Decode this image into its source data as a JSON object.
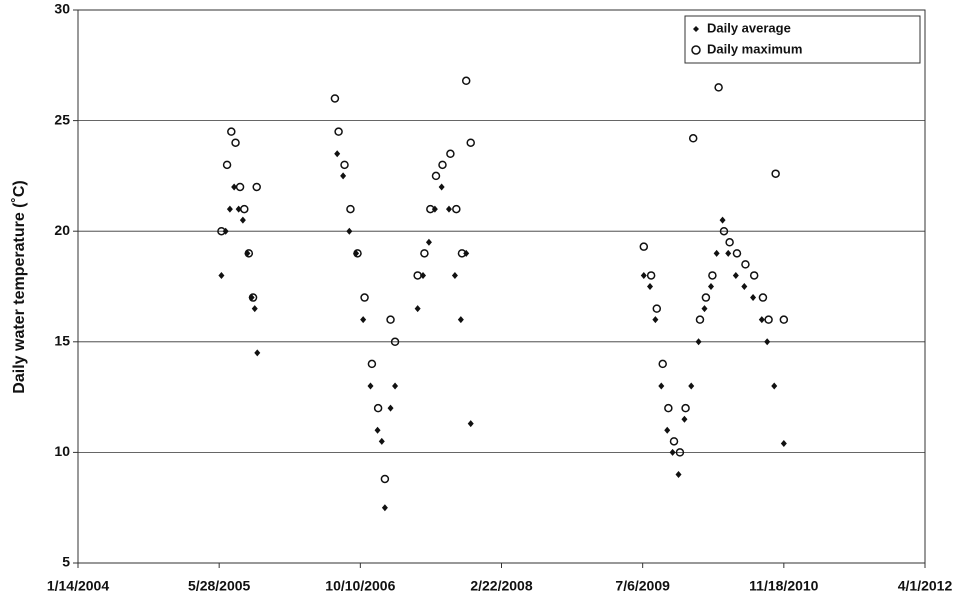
{
  "chart_data": {
    "type": "scatter",
    "y_label": "Daily water temperature (˚C)",
    "xlim": [
      "2004-01-14",
      "2012-04-01"
    ],
    "xticks": [
      {
        "value": "2004-01-14",
        "label": "1/14/2004"
      },
      {
        "value": "2005-05-28",
        "label": "5/28/2005"
      },
      {
        "value": "2006-10-10",
        "label": "10/10/2006"
      },
      {
        "value": "2008-02-22",
        "label": "2/22/2008"
      },
      {
        "value": "2009-07-06",
        "label": "7/6/2009"
      },
      {
        "value": "2010-11-18",
        "label": "11/18/2010"
      },
      {
        "value": "2012-04-01",
        "label": "4/1/2012"
      }
    ],
    "ylim": [
      5,
      30
    ],
    "yticks": [
      5,
      10,
      15,
      20,
      25,
      30
    ],
    "grid": true,
    "legend": "top-right",
    "series": [
      {
        "name": "Daily average",
        "marker": "diamond",
        "color": "#111111",
        "x": [
          "2005-06-05",
          "2005-06-20",
          "2005-07-05",
          "2005-07-20",
          "2005-08-05",
          "2005-08-20",
          "2005-09-05",
          "2005-09-20",
          "2005-10-01",
          "2005-10-10",
          "2006-07-20",
          "2006-08-10",
          "2006-09-01",
          "2006-09-25",
          "2006-10-20",
          "2006-11-15",
          "2006-12-10",
          "2006-12-25",
          "2007-01-05",
          "2007-01-25",
          "2007-02-10",
          "2007-05-01",
          "2007-05-20",
          "2007-06-10",
          "2007-07-01",
          "2007-07-25",
          "2007-08-20",
          "2007-09-10",
          "2007-10-01",
          "2007-10-20",
          "2007-11-05",
          "2009-07-10",
          "2009-08-01",
          "2009-08-20",
          "2009-09-10",
          "2009-10-01",
          "2009-10-20",
          "2009-11-10",
          "2009-12-01",
          "2009-12-25",
          "2010-01-20",
          "2010-02-10",
          "2010-03-05",
          "2010-03-25",
          "2010-04-15",
          "2010-05-05",
          "2010-06-01",
          "2010-07-01",
          "2010-08-01",
          "2010-09-01",
          "2010-09-20",
          "2010-10-15",
          "2010-11-18"
        ],
        "values": [
          18,
          20,
          21,
          22,
          21,
          20.5,
          19,
          17,
          16.5,
          14.5,
          23.5,
          22.5,
          20,
          19,
          16,
          13,
          11,
          10.5,
          7.5,
          12,
          13,
          16.5,
          18,
          19.5,
          21,
          22,
          21,
          18,
          16,
          19,
          11.3,
          18,
          17.5,
          16,
          13,
          11,
          10,
          9,
          11.5,
          13,
          15,
          16.5,
          17.5,
          19,
          20.5,
          19,
          18,
          17.5,
          17,
          16,
          15,
          13,
          10.4
        ]
      },
      {
        "name": "Daily maximum",
        "marker": "circle",
        "color": "#111111",
        "x": [
          "2005-06-05",
          "2005-06-25",
          "2005-07-10",
          "2005-07-25",
          "2005-08-10",
          "2005-08-25",
          "2005-09-10",
          "2005-09-25",
          "2005-10-08",
          "2006-07-12",
          "2006-07-25",
          "2006-08-15",
          "2006-09-05",
          "2006-09-30",
          "2006-10-25",
          "2006-11-20",
          "2006-12-12",
          "2007-01-05",
          "2007-01-25",
          "2007-02-10",
          "2007-05-01",
          "2007-05-25",
          "2007-06-15",
          "2007-07-05",
          "2007-07-28",
          "2007-08-25",
          "2007-09-15",
          "2007-10-05",
          "2007-10-20",
          "2007-11-05",
          "2009-07-10",
          "2009-08-05",
          "2009-08-25",
          "2009-09-15",
          "2009-10-05",
          "2009-10-25",
          "2009-11-15",
          "2009-12-05",
          "2010-01-01",
          "2010-01-25",
          "2010-02-15",
          "2010-03-10",
          "2010-04-01",
          "2010-04-20",
          "2010-05-10",
          "2010-06-05",
          "2010-07-05",
          "2010-08-05",
          "2010-09-05",
          "2010-09-25",
          "2010-10-20",
          "2010-11-18"
        ],
        "values": [
          20,
          23,
          24.5,
          24,
          22,
          21,
          19,
          17,
          22,
          26,
          24.5,
          23,
          21,
          19,
          17,
          14,
          12,
          8.8,
          16,
          15,
          18,
          19,
          21,
          22.5,
          23,
          23.5,
          21,
          19,
          26.8,
          24,
          19.3,
          18,
          16.5,
          14,
          12,
          10.5,
          10,
          12,
          24.2,
          16,
          17,
          18,
          26.5,
          20,
          19.5,
          19,
          18.5,
          18,
          17,
          16,
          22.6,
          16
        ]
      }
    ]
  }
}
